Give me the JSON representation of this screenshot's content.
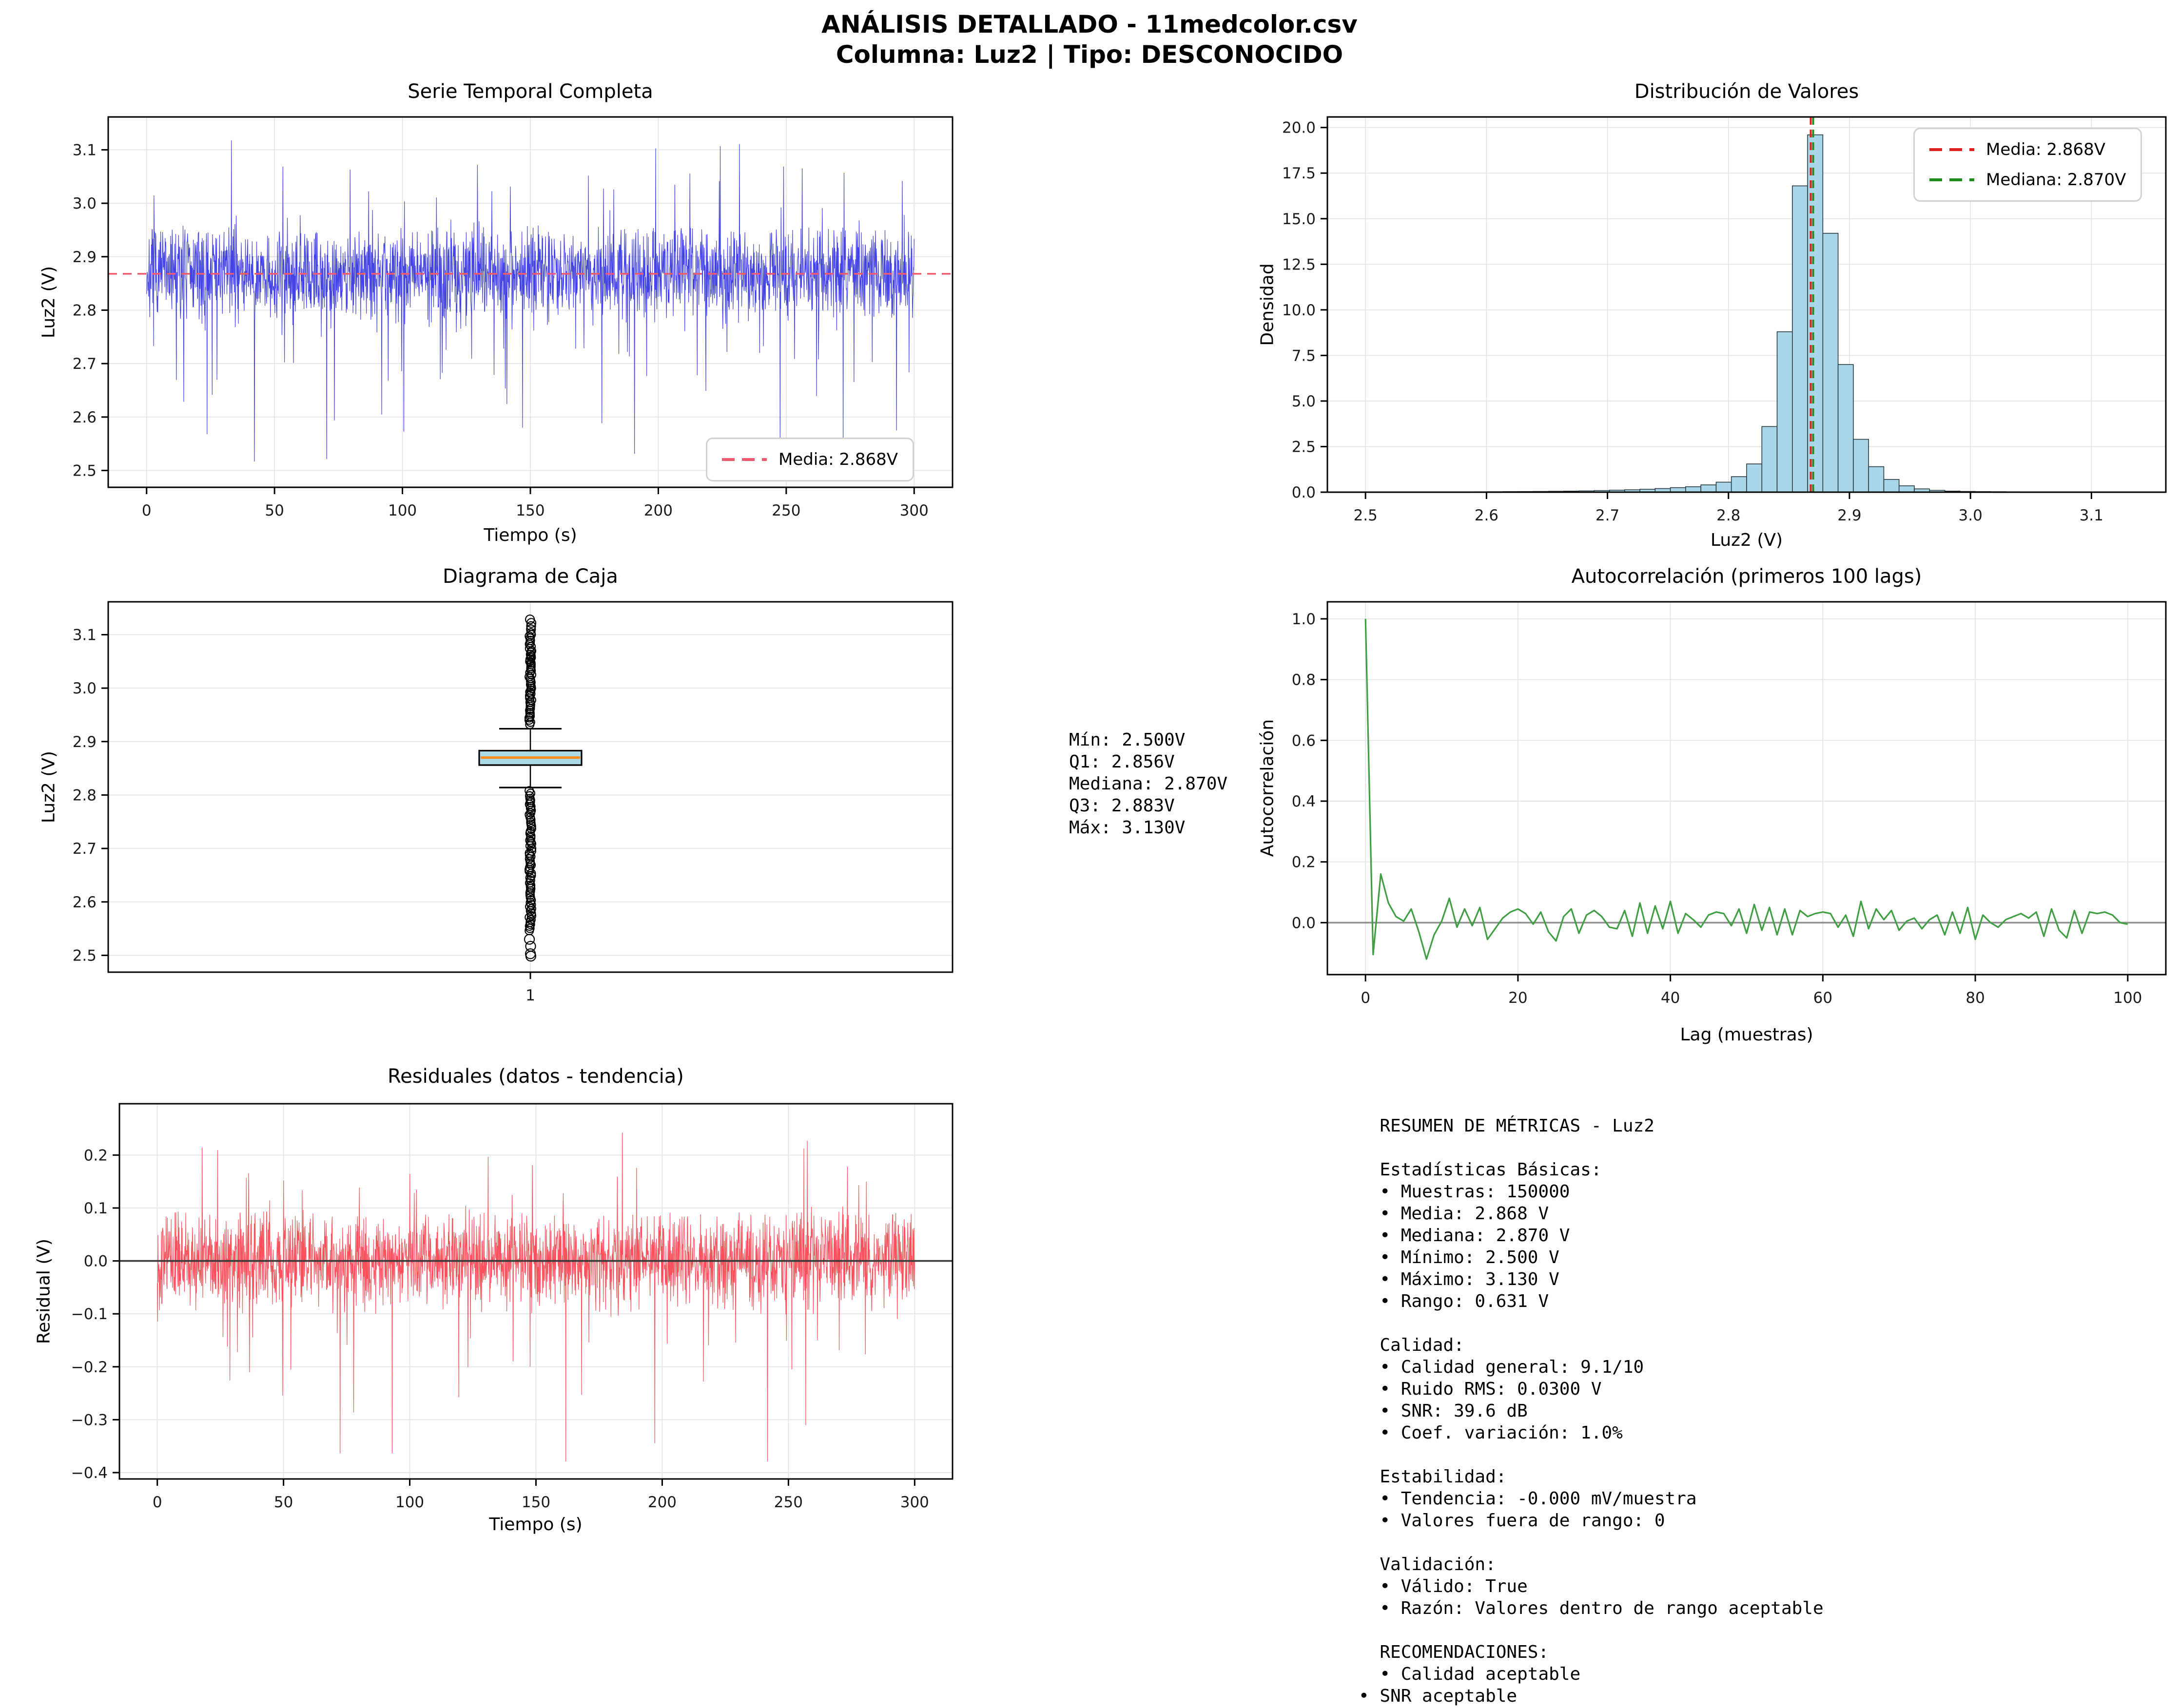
{
  "suptitle": {
    "line1": "ANÁLISIS DETALLADO - 11medcolor.csv",
    "line2": "Columna: Luz2 | Tipo: DESCONOCIDO"
  },
  "colors": {
    "serie_blue": "#2a2ae0",
    "serie_mean_dash": "#ee5a6e",
    "hist_fill": "#a9d6e8",
    "hist_edge": "#2b3a42",
    "media_red": "#dc1f1f",
    "mediana_green": "#1f8c1f",
    "box_fill": "#add8e6",
    "box_median_orange": "#ff8c1a",
    "acf_green": "#3f9e42",
    "resid_red": "#fb3e4a",
    "zero_gray": "#909090",
    "zero_dark": "#3a3a3a",
    "grid": "#e3e3e3",
    "frame": "#000000"
  },
  "chart_data": [
    {
      "id": "serie",
      "type": "line",
      "title": "Serie Temporal Completa",
      "xlabel": "Tiempo (s)",
      "ylabel": "Luz2 (V)",
      "legend_label": "Media: 2.868V",
      "xlim": [
        -15,
        315
      ],
      "ylim": [
        2.4685,
        3.1615
      ],
      "xtick_vals": [
        0,
        50,
        100,
        150,
        200,
        250,
        300
      ],
      "xtick_labels": [
        "0",
        "50",
        "100",
        "150",
        "200",
        "250",
        "300"
      ],
      "ytick_vals": [
        2.5,
        2.6,
        2.7,
        2.8,
        2.9,
        3.0,
        3.1
      ],
      "ytick_labels": [
        "2.5",
        "2.6",
        "2.7",
        "2.8",
        "2.9",
        "3.0",
        "3.1"
      ],
      "mean": 2.868,
      "duration_s": 300,
      "value_min": 2.5,
      "value_max": 3.13,
      "synth": {
        "seed": 7,
        "n": 2400,
        "sigma": 0.042,
        "clip_high": 0.085,
        "clip_low": 0.135,
        "p_down": 0.012,
        "down_min": 0.135,
        "down_max": 0.372,
        "p_up": 0.02,
        "up_min": 0.085,
        "up_max": 0.262,
        "base": 2.868
      }
    },
    {
      "id": "hist",
      "type": "histogram",
      "title": "Distribución de Valores",
      "xlabel": "Luz2 (V)",
      "ylabel": "Densidad",
      "legend_media": "Media: 2.868V",
      "legend_mediana": "Mediana: 2.870V",
      "xlim": [
        2.4685,
        3.1615
      ],
      "ylim": [
        0,
        20.58
      ],
      "xtick_vals": [
        2.5,
        2.6,
        2.7,
        2.8,
        2.9,
        3.0,
        3.1
      ],
      "xtick_labels": [
        "2.5",
        "2.6",
        "2.7",
        "2.8",
        "2.9",
        "3.0",
        "3.1"
      ],
      "ytick_vals": [
        0,
        2.5,
        5,
        7.5,
        10,
        12.5,
        15,
        17.5,
        20
      ],
      "ytick_labels": [
        "0.0",
        "2.5",
        "5.0",
        "7.5",
        "10.0",
        "12.5",
        "15.0",
        "17.5",
        "20.0"
      ],
      "mean": 2.868,
      "median": 2.87,
      "bin_start": 2.5,
      "bin_width": 0.0126,
      "densities": [
        0.01,
        0.01,
        0.01,
        0.01,
        0.01,
        0.015,
        0.015,
        0.02,
        0.025,
        0.03,
        0.035,
        0.04,
        0.05,
        0.06,
        0.07,
        0.09,
        0.11,
        0.13,
        0.16,
        0.2,
        0.25,
        0.3,
        0.4,
        0.55,
        0.85,
        1.55,
        3.6,
        8.8,
        16.8,
        19.6,
        14.2,
        7.0,
        2.9,
        1.4,
        0.7,
        0.35,
        0.18,
        0.1,
        0.06,
        0.04,
        0.03,
        0.025,
        0.02,
        0.015,
        0.015,
        0.01,
        0.01,
        0.01,
        0.005,
        0.01
      ]
    },
    {
      "id": "caja",
      "type": "boxplot",
      "title": "Diagrama de Caja",
      "ylabel": "Luz2 (V)",
      "xlim": [
        0,
        2
      ],
      "ylim": [
        2.4685,
        3.1615
      ],
      "xtick_vals": [
        1
      ],
      "xtick_labels": [
        "1"
      ],
      "ytick_vals": [
        2.5,
        2.6,
        2.7,
        2.8,
        2.9,
        3.0,
        3.1
      ],
      "ytick_labels": [
        "2.5",
        "2.6",
        "2.7",
        "2.8",
        "2.9",
        "3.0",
        "3.1"
      ],
      "stats": {
        "min": 2.5,
        "q1": 2.856,
        "median": 2.87,
        "q3": 2.883,
        "max": 3.13,
        "whisker_low": 2.814,
        "whisker_high": 2.924
      },
      "outliers_top_range": [
        2.932,
        3.104
      ],
      "outliers_top_sparse": [
        3.11,
        3.116,
        3.122,
        3.1285
      ],
      "outliers_bottom_range": [
        2.545,
        2.808
      ],
      "outliers_bottom_sparse": [
        2.53,
        2.517,
        2.503,
        2.4985
      ]
    },
    {
      "id": "acf",
      "type": "line",
      "title": "Autocorrelación (primeros 100 lags)",
      "xlabel": "Lag (muestras)",
      "ylabel": "Autocorrelación",
      "xlim": [
        -5,
        105
      ],
      "ylim": [
        -0.171,
        1.056
      ],
      "xtick_vals": [
        0,
        20,
        40,
        60,
        80,
        100
      ],
      "xtick_labels": [
        "0",
        "20",
        "40",
        "60",
        "80",
        "100"
      ],
      "ytick_vals": [
        0,
        0.2,
        0.4,
        0.6,
        0.8,
        1.0
      ],
      "ytick_labels": [
        "0.0",
        "0.2",
        "0.4",
        "0.6",
        "0.8",
        "1.0"
      ],
      "zero_line": 0,
      "values": [
        1.0,
        -0.105,
        0.16,
        0.065,
        0.02,
        0.005,
        0.045,
        -0.03,
        -0.12,
        -0.04,
        0.005,
        0.08,
        -0.015,
        0.045,
        -0.01,
        0.05,
        -0.055,
        -0.02,
        0.015,
        0.035,
        0.045,
        0.03,
        -0.005,
        0.035,
        -0.03,
        -0.06,
        0.02,
        0.045,
        -0.035,
        0.025,
        0.04,
        0.02,
        -0.015,
        -0.02,
        0.04,
        -0.045,
        0.065,
        -0.035,
        0.055,
        -0.02,
        0.07,
        -0.035,
        0.03,
        0.01,
        -0.015,
        0.025,
        0.035,
        0.03,
        -0.01,
        0.045,
        -0.035,
        0.06,
        -0.025,
        0.05,
        -0.04,
        0.045,
        -0.04,
        0.04,
        0.02,
        0.03,
        0.035,
        0.03,
        -0.015,
        0.025,
        -0.045,
        0.07,
        -0.02,
        0.045,
        0.01,
        0.04,
        -0.025,
        0.005,
        0.015,
        -0.02,
        0.01,
        0.025,
        -0.04,
        0.035,
        -0.035,
        0.05,
        -0.055,
        0.025,
        0.0,
        -0.015,
        0.01,
        0.02,
        0.03,
        0.015,
        0.035,
        -0.045,
        0.045,
        -0.025,
        -0.05,
        0.04,
        -0.035,
        0.035,
        0.03,
        0.035,
        0.025,
        0.0,
        -0.005
      ]
    },
    {
      "id": "resid",
      "type": "line",
      "title": "Residuales (datos - tendencia)",
      "xlabel": "Tiempo (s)",
      "ylabel": "Residual (V)",
      "xlim": [
        -15,
        315
      ],
      "ylim": [
        -0.412,
        0.297
      ],
      "xtick_vals": [
        0,
        50,
        100,
        150,
        200,
        250,
        300
      ],
      "xtick_labels": [
        "0",
        "50",
        "100",
        "150",
        "200",
        "250",
        "300"
      ],
      "ytick_vals": [
        -0.4,
        -0.3,
        -0.2,
        -0.1,
        0.0,
        0.1,
        0.2
      ],
      "ytick_labels": [
        "−0.4",
        "−0.3",
        "−0.2",
        "−0.1",
        "0.0",
        "0.1",
        "0.2"
      ],
      "zero_line": 0,
      "synth": {
        "seed": 13,
        "n": 2400,
        "sigma": 0.042,
        "clip_high": 0.09,
        "clip_low": 0.135,
        "p_down": 0.012,
        "down_min": 0.135,
        "down_max": 0.385,
        "p_up": 0.02,
        "up_min": 0.09,
        "up_max": 0.265,
        "base": 0
      }
    }
  ],
  "stats_box": {
    "text": "Mín: 2.500V\nQ1: 2.856V\nMediana: 2.870V\nQ3: 2.883V\nMáx: 3.130V"
  },
  "metrics_box": {
    "text": "  RESUMEN DE MÉTRICAS - Luz2\n\n  Estadísticas Básicas:\n  • Muestras: 150000\n  • Media: 2.868 V\n  • Mediana: 2.870 V\n  • Mínimo: 2.500 V\n  • Máximo: 3.130 V\n  • Rango: 0.631 V\n\n  Calidad:\n  • Calidad general: 9.1/10\n  • Ruido RMS: 0.0300 V\n  • SNR: 39.6 dB\n  • Coef. variación: 1.0%\n\n  Estabilidad:\n  • Tendencia: -0.000 mV/muestra\n  • Valores fuera de rango: 0\n\n  Validación:\n  • Válido: True\n  • Razón: Valores dentro de rango aceptable\n\n  RECOMENDACIONES:\n  • Calidad aceptable\n• SNR aceptable"
  }
}
